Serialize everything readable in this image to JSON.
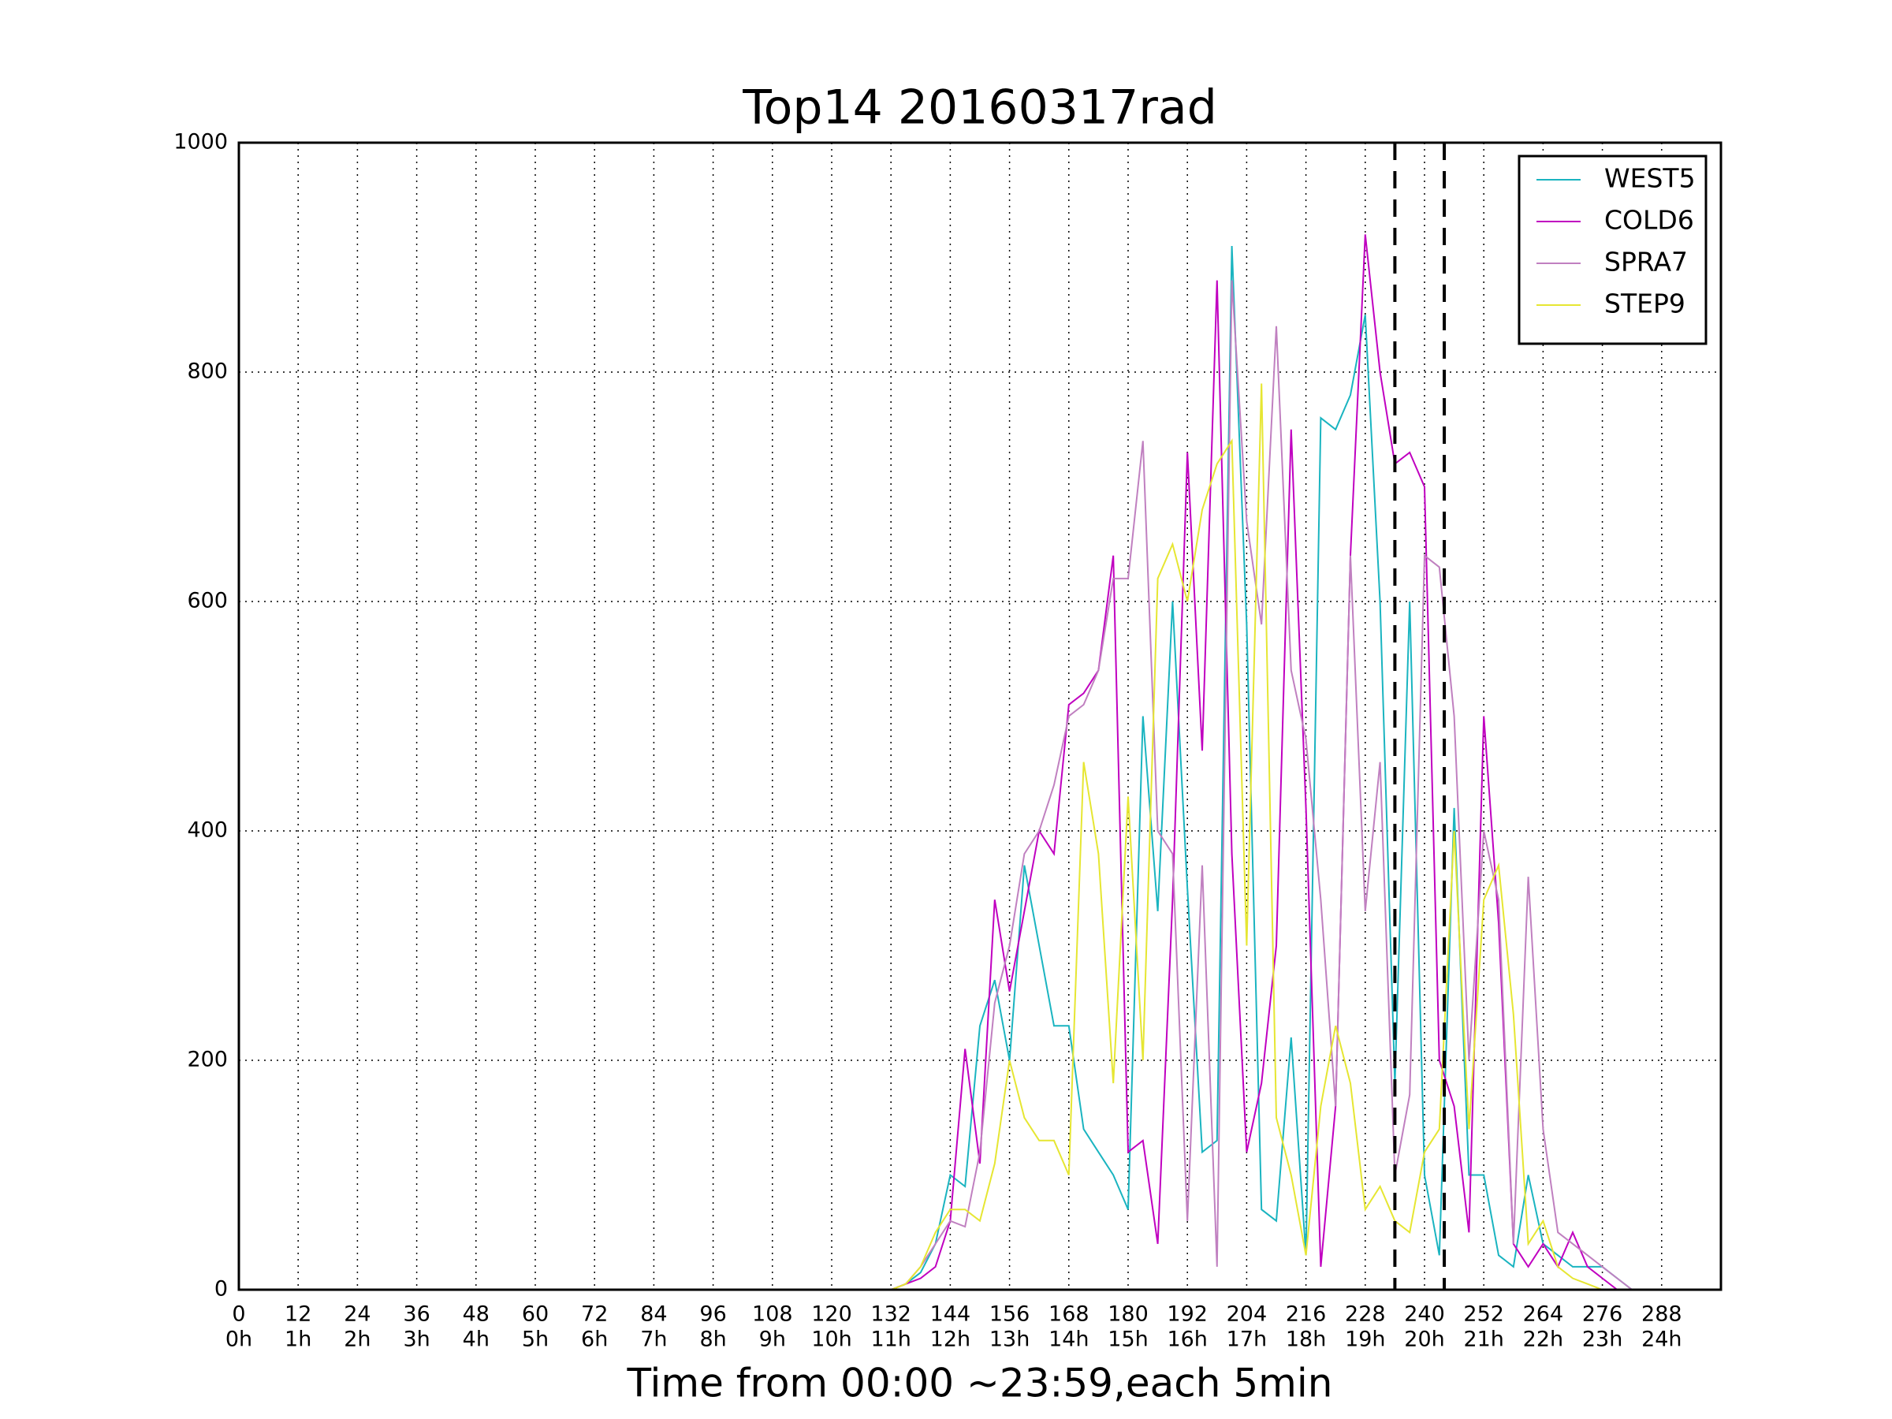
{
  "chart_data": {
    "type": "line",
    "title": "Top14 20160317rad",
    "x_label": "Time from 00:00 ~23:59,each 5min",
    "x": [
      0,
      132,
      135,
      138,
      141,
      144,
      147,
      150,
      153,
      156,
      159,
      162,
      165,
      168,
      171,
      174,
      177,
      180,
      183,
      186,
      189,
      192,
      195,
      198,
      201,
      204,
      207,
      210,
      213,
      216,
      219,
      222,
      225,
      228,
      231,
      234,
      237,
      240,
      243,
      246,
      249,
      252,
      255,
      258,
      261,
      264,
      267,
      270,
      273,
      276,
      279,
      282
    ],
    "series": [
      {
        "name": "WEST5",
        "color": "#1ab4c0",
        "values": [
          0,
          0,
          5,
          15,
          40,
          100,
          90,
          230,
          270,
          200,
          370,
          300,
          230,
          230,
          140,
          120,
          100,
          70,
          500,
          330,
          600,
          350,
          120,
          130,
          910,
          580,
          70,
          60,
          220,
          30,
          760,
          750,
          780,
          850,
          600,
          180,
          600,
          100,
          30,
          420,
          100,
          100,
          30,
          20,
          100,
          40,
          30,
          20,
          20,
          20,
          10,
          0
        ]
      },
      {
        "name": "COLD6",
        "color": "#c000c0",
        "values": [
          0,
          0,
          5,
          10,
          20,
          60,
          210,
          110,
          340,
          260,
          330,
          400,
          380,
          510,
          520,
          540,
          640,
          120,
          130,
          40,
          340,
          730,
          470,
          880,
          380,
          120,
          180,
          300,
          750,
          420,
          20,
          160,
          640,
          920,
          800,
          720,
          730,
          700,
          200,
          160,
          50,
          500,
          320,
          40,
          20,
          40,
          20,
          50,
          20,
          10,
          0,
          0
        ]
      },
      {
        "name": "SPRA7",
        "color": "#c080c0",
        "values": [
          0,
          0,
          5,
          20,
          40,
          60,
          55,
          120,
          250,
          300,
          380,
          400,
          440,
          500,
          510,
          540,
          620,
          620,
          740,
          400,
          380,
          60,
          370,
          20,
          880,
          670,
          580,
          840,
          540,
          480,
          340,
          160,
          640,
          330,
          460,
          100,
          170,
          640,
          630,
          500,
          200,
          400,
          340,
          40,
          360,
          140,
          50,
          40,
          30,
          20,
          10,
          0
        ]
      },
      {
        "name": "STEP9",
        "color": "#e6e632",
        "values": [
          0,
          0,
          5,
          20,
          50,
          70,
          70,
          60,
          110,
          200,
          150,
          130,
          130,
          100,
          460,
          380,
          180,
          430,
          200,
          620,
          650,
          600,
          680,
          720,
          740,
          300,
          790,
          150,
          100,
          30,
          160,
          230,
          180,
          70,
          90,
          60,
          50,
          120,
          140,
          400,
          140,
          340,
          370,
          240,
          40,
          60,
          20,
          10,
          5,
          0,
          0,
          0
        ]
      }
    ],
    "xlim": [
      0,
      300
    ],
    "ylim": [
      0,
      1000
    ],
    "xticks": [
      0,
      12,
      24,
      36,
      48,
      60,
      72,
      84,
      96,
      108,
      120,
      132,
      144,
      156,
      168,
      180,
      192,
      204,
      216,
      228,
      240,
      252,
      264,
      276,
      288
    ],
    "xtick_hours": [
      "0h",
      "1h",
      "2h",
      "3h",
      "4h",
      "5h",
      "6h",
      "7h",
      "8h",
      "9h",
      "10h",
      "11h",
      "12h",
      "13h",
      "14h",
      "15h",
      "16h",
      "17h",
      "18h",
      "19h",
      "20h",
      "21h",
      "22h",
      "23h",
      "24h"
    ],
    "yticks": [
      0,
      200,
      400,
      600,
      800,
      1000
    ],
    "vlines": [
      234,
      244
    ],
    "grid": true,
    "legend": "upper right"
  }
}
